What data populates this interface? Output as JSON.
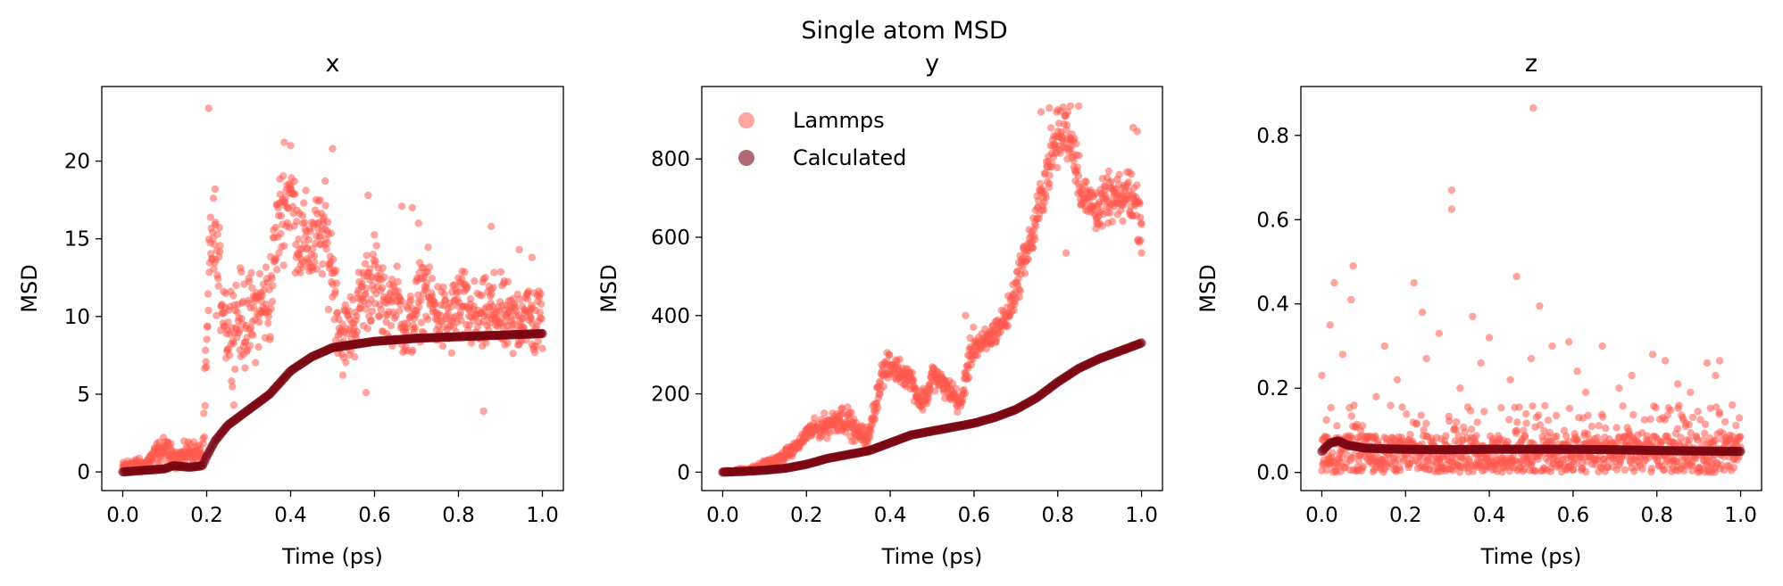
{
  "figure_title": "Single atom MSD",
  "colors": {
    "lammps": "#ff5a4f",
    "calculated": "#7b0612"
  },
  "legend": {
    "placement": "upper-left (panel y)",
    "entries": [
      "Lammps",
      "Calculated"
    ]
  },
  "chart_data": [
    {
      "type": "scatter",
      "title": "x",
      "xlabel": "Time (ps)",
      "ylabel": "MSD",
      "xlim": [
        -0.05,
        1.05
      ],
      "ylim": [
        -1.2,
        24.8
      ],
      "xticks": [
        0.0,
        0.2,
        0.4,
        0.6,
        0.8,
        1.0
      ],
      "xtick_labels": [
        "0.0",
        "0.2",
        "0.4",
        "0.6",
        "0.8",
        "1.0"
      ],
      "yticks": [
        0,
        5,
        10,
        15,
        20
      ],
      "ytick_labels": [
        "0",
        "5",
        "10",
        "15",
        "20"
      ],
      "grid": false,
      "series": [
        {
          "name": "Lammps",
          "color": "#ff5a4f",
          "x": [
            0.0,
            0.02,
            0.05,
            0.08,
            0.1,
            0.13,
            0.16,
            0.19,
            0.2,
            0.21,
            0.22,
            0.24,
            0.25,
            0.27,
            0.3,
            0.32,
            0.35,
            0.37,
            0.39,
            0.4,
            0.42,
            0.45,
            0.48,
            0.5,
            0.52,
            0.55,
            0.57,
            0.6,
            0.62,
            0.65,
            0.68,
            0.7,
            0.72,
            0.75,
            0.78,
            0.8,
            0.83,
            0.85,
            0.88,
            0.9,
            0.93,
            0.96,
            0.98,
            1.0
          ],
          "y": [
            0.3,
            0.5,
            0.4,
            1.2,
            1.5,
            0.8,
            1.4,
            1.0,
            7.0,
            15.5,
            14.0,
            11.0,
            9.0,
            10.0,
            9.5,
            10.5,
            11.0,
            16.0,
            17.5,
            18.0,
            15.0,
            14.5,
            15.5,
            13.0,
            8.5,
            9.5,
            11.5,
            12.5,
            10.5,
            11.0,
            9.0,
            10.5,
            12.0,
            10.0,
            9.5,
            11.0,
            10.0,
            9.5,
            10.5,
            10.0,
            9.5,
            10.5,
            9.5,
            10.0
          ],
          "spread": [
            0.3,
            0.4,
            0.3,
            0.6,
            0.6,
            0.5,
            0.6,
            0.6,
            3.0,
            3.0,
            2.5,
            2.5,
            2.5,
            2.5,
            2.5,
            2.5,
            2.5,
            2.5,
            2.5,
            2.5,
            2.5,
            2.5,
            2.5,
            2.5,
            2.0,
            2.0,
            2.0,
            2.5,
            2.0,
            2.0,
            2.0,
            2.0,
            2.0,
            2.0,
            2.0,
            2.0,
            2.0,
            2.0,
            2.0,
            2.0,
            2.0,
            2.0,
            2.0,
            2.0
          ],
          "outliers": [
            [
              0.205,
              23.4
            ],
            [
              0.22,
              18.2
            ],
            [
              0.385,
              21.2
            ],
            [
              0.4,
              21.0
            ],
            [
              0.5,
              20.8
            ],
            [
              0.585,
              17.8
            ],
            [
              0.665,
              17.1
            ],
            [
              0.69,
              17.0
            ],
            [
              0.705,
              16.0
            ],
            [
              0.878,
              15.8
            ],
            [
              0.945,
              14.3
            ],
            [
              0.975,
              13.8
            ],
            [
              0.86,
              3.9
            ],
            [
              0.58,
              5.1
            ],
            [
              0.265,
              4.3
            ]
          ]
        },
        {
          "name": "Calculated",
          "color": "#7b0612",
          "x": [
            0.0,
            0.05,
            0.1,
            0.12,
            0.16,
            0.19,
            0.2,
            0.22,
            0.25,
            0.3,
            0.35,
            0.4,
            0.45,
            0.5,
            0.55,
            0.6,
            0.7,
            0.8,
            0.9,
            1.0
          ],
          "y": [
            0.0,
            0.1,
            0.2,
            0.4,
            0.3,
            0.4,
            1.0,
            2.0,
            3.0,
            4.0,
            5.0,
            6.5,
            7.4,
            8.0,
            8.2,
            8.4,
            8.6,
            8.7,
            8.8,
            8.9
          ]
        }
      ]
    },
    {
      "type": "scatter",
      "title": "y",
      "xlabel": "Time (ps)",
      "ylabel": "MSD",
      "xlim": [
        -0.05,
        1.05
      ],
      "ylim": [
        -47,
        985
      ],
      "xticks": [
        0.0,
        0.2,
        0.4,
        0.6,
        0.8,
        1.0
      ],
      "xtick_labels": [
        "0.0",
        "0.2",
        "0.4",
        "0.6",
        "0.8",
        "1.0"
      ],
      "yticks": [
        0,
        200,
        400,
        600,
        800
      ],
      "ytick_labels": [
        "0",
        "200",
        "400",
        "600",
        "800"
      ],
      "grid": false,
      "series": [
        {
          "name": "Lammps",
          "color": "#ff5a4f",
          "x": [
            0.0,
            0.05,
            0.08,
            0.1,
            0.13,
            0.15,
            0.17,
            0.19,
            0.2,
            0.22,
            0.25,
            0.28,
            0.3,
            0.32,
            0.35,
            0.36,
            0.38,
            0.4,
            0.42,
            0.45,
            0.47,
            0.49,
            0.5,
            0.52,
            0.55,
            0.57,
            0.58,
            0.6,
            0.62,
            0.65,
            0.68,
            0.7,
            0.72,
            0.74,
            0.76,
            0.78,
            0.8,
            0.82,
            0.84,
            0.86,
            0.88,
            0.9,
            0.92,
            0.95,
            0.97,
            1.0
          ],
          "y": [
            0.0,
            5.0,
            10.0,
            20.0,
            30.0,
            45.0,
            60.0,
            80.0,
            100.0,
            110.0,
            120.0,
            140.0,
            130.0,
            100.0,
            90.0,
            150.0,
            250.0,
            270.0,
            260.0,
            240.0,
            180.0,
            200.0,
            250.0,
            230.0,
            200.0,
            170.0,
            250.0,
            330.0,
            320.0,
            360.0,
            400.0,
            470.0,
            550.0,
            600.0,
            700.0,
            790.0,
            850.0,
            880.0,
            820.0,
            700.0,
            690.0,
            670.0,
            700.0,
            690.0,
            720.0,
            650.0
          ],
          "spread": [
            3,
            5,
            6,
            10,
            10,
            12,
            12,
            15,
            20,
            20,
            25,
            30,
            30,
            20,
            20,
            30,
            30,
            30,
            25,
            25,
            25,
            25,
            25,
            25,
            25,
            25,
            35,
            35,
            30,
            30,
            35,
            40,
            40,
            45,
            50,
            60,
            60,
            60,
            60,
            50,
            50,
            50,
            50,
            50,
            60,
            60
          ],
          "outliers": [
            [
              0.78,
              930
            ],
            [
              0.8,
              925
            ],
            [
              0.83,
              935
            ],
            [
              0.85,
              935
            ],
            [
              0.76,
              920
            ],
            [
              0.98,
              880
            ],
            [
              0.99,
              870
            ],
            [
              1.0,
              560
            ],
            [
              0.82,
              560
            ],
            [
              0.58,
              400
            ]
          ]
        },
        {
          "name": "Calculated",
          "color": "#7b0612",
          "x": [
            0.0,
            0.05,
            0.1,
            0.15,
            0.2,
            0.25,
            0.3,
            0.35,
            0.4,
            0.45,
            0.5,
            0.55,
            0.6,
            0.65,
            0.7,
            0.75,
            0.8,
            0.85,
            0.9,
            0.95,
            1.0
          ],
          "y": [
            0.0,
            2.0,
            5.0,
            10.0,
            20.0,
            35.0,
            45.0,
            55.0,
            75.0,
            95.0,
            105.0,
            115.0,
            125.0,
            140.0,
            160.0,
            190.0,
            230.0,
            265.0,
            290.0,
            310.0,
            330.0
          ]
        }
      ]
    },
    {
      "type": "scatter",
      "title": "z",
      "xlabel": "Time (ps)",
      "ylabel": "MSD",
      "xlim": [
        -0.05,
        1.05
      ],
      "ylim": [
        -0.043,
        0.916
      ],
      "xticks": [
        0.0,
        0.2,
        0.4,
        0.6,
        0.8,
        1.0
      ],
      "xtick_labels": [
        "0.0",
        "0.2",
        "0.4",
        "0.6",
        "0.8",
        "1.0"
      ],
      "yticks": [
        0.0,
        0.2,
        0.4,
        0.6,
        0.8
      ],
      "ytick_labels": [
        "0.0",
        "0.2",
        "0.4",
        "0.6",
        "0.8"
      ],
      "grid": false,
      "series": [
        {
          "name": "Lammps",
          "color": "#ff5a4f",
          "x": [
            0.0,
            0.1,
            0.2,
            0.3,
            0.4,
            0.5,
            0.6,
            0.7,
            0.8,
            0.9,
            1.0
          ],
          "y": [
            0.02,
            0.02,
            0.02,
            0.02,
            0.02,
            0.02,
            0.02,
            0.02,
            0.02,
            0.02,
            0.02
          ],
          "spread": [
            0.02,
            0.02,
            0.02,
            0.02,
            0.02,
            0.02,
            0.02,
            0.02,
            0.02,
            0.02,
            0.02
          ],
          "outliers": [
            [
              0.505,
              0.865
            ],
            [
              0.31,
              0.67
            ],
            [
              0.31,
              0.625
            ],
            [
              0.075,
              0.49
            ],
            [
              0.465,
              0.465
            ],
            [
              0.03,
              0.45
            ],
            [
              0.22,
              0.45
            ],
            [
              0.07,
              0.41
            ],
            [
              0.24,
              0.38
            ],
            [
              0.36,
              0.37
            ],
            [
              0.52,
              0.395
            ],
            [
              0.02,
              0.35
            ],
            [
              0.0,
              0.23
            ],
            [
              0.15,
              0.3
            ],
            [
              0.28,
              0.33
            ],
            [
              0.4,
              0.32
            ],
            [
              0.55,
              0.3
            ],
            [
              0.59,
              0.31
            ],
            [
              0.67,
              0.3
            ],
            [
              0.79,
              0.28
            ],
            [
              0.82,
              0.265
            ],
            [
              0.92,
              0.26
            ],
            [
              0.95,
              0.265
            ],
            [
              0.94,
              0.23
            ],
            [
              0.13,
              0.18
            ],
            [
              0.33,
              0.2
            ],
            [
              0.45,
              0.22
            ],
            [
              0.63,
              0.19
            ],
            [
              0.71,
              0.2
            ],
            [
              0.88,
              0.19
            ],
            [
              0.98,
              0.16
            ],
            [
              0.05,
              0.28
            ],
            [
              0.18,
              0.22
            ],
            [
              0.25,
              0.27
            ],
            [
              0.38,
              0.26
            ],
            [
              0.5,
              0.27
            ],
            [
              0.61,
              0.24
            ],
            [
              0.74,
              0.23
            ],
            [
              0.85,
              0.21
            ]
          ],
          "band": [
            0.0,
            0.16
          ]
        },
        {
          "name": "Calculated",
          "color": "#7b0612",
          "x": [
            0.0,
            0.01,
            0.02,
            0.04,
            0.06,
            0.08,
            0.1,
            0.15,
            0.2,
            0.3,
            0.4,
            0.5,
            0.6,
            0.7,
            0.8,
            0.9,
            1.0
          ],
          "y": [
            0.05,
            0.06,
            0.07,
            0.075,
            0.065,
            0.062,
            0.058,
            0.056,
            0.055,
            0.054,
            0.055,
            0.055,
            0.055,
            0.054,
            0.052,
            0.051,
            0.05
          ]
        }
      ]
    }
  ]
}
